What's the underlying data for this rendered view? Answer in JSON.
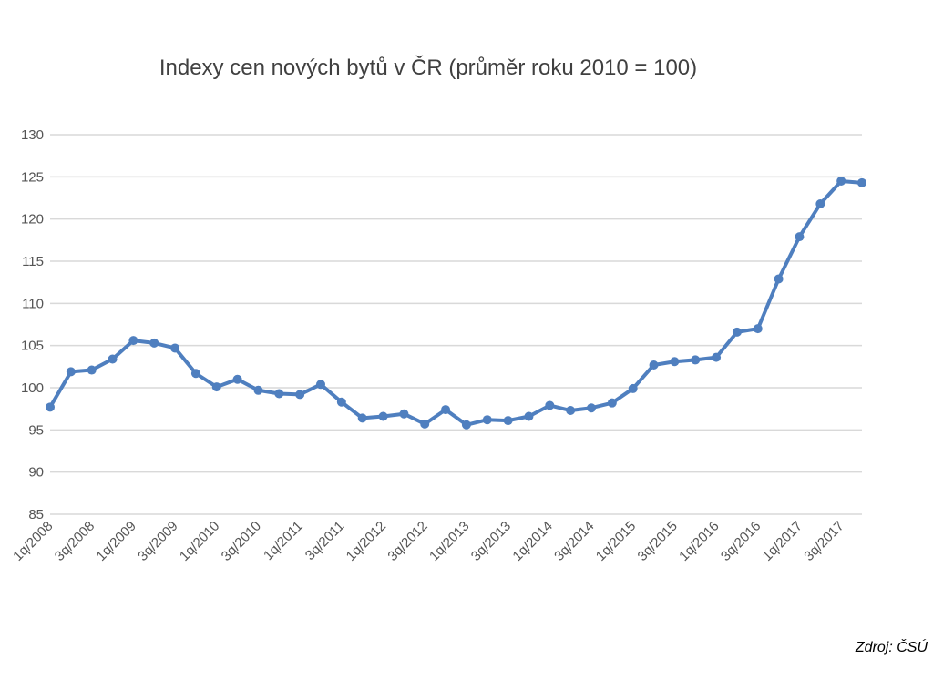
{
  "chart_data": {
    "type": "line",
    "title": "Indexy cen nových bytů v ČR (průměr roku 2010 = 100)",
    "xlabel": "",
    "ylabel": "",
    "ylim": [
      85,
      130
    ],
    "yticks": [
      85,
      90,
      95,
      100,
      105,
      110,
      115,
      120,
      125,
      130
    ],
    "grid": true,
    "legend": "none",
    "colors": {
      "series": "#4F7FBF",
      "grid": "#D9D9D9"
    },
    "categories": [
      "1q/2008",
      "2q/2008",
      "3q/2008",
      "4q/2008",
      "1q/2009",
      "2q/2009",
      "3q/2009",
      "4q/2009",
      "1q/2010",
      "2q/2010",
      "3q/2010",
      "4q/2010",
      "1q/2011",
      "2q/2011",
      "3q/2011",
      "4q/2011",
      "1q/2012",
      "2q/2012",
      "3q/2012",
      "4q/2012",
      "1q/2013",
      "2q/2013",
      "3q/2013",
      "4q/2013",
      "1q/2014",
      "2q/2014",
      "3q/2014",
      "4q/2014",
      "1q/2015",
      "2q/2015",
      "3q/2015",
      "4q/2015",
      "1q/2016",
      "2q/2016",
      "3q/2016",
      "4q/2016",
      "1q/2017",
      "2q/2017",
      "3q/2017",
      "4q/2017"
    ],
    "x_tick_labels": [
      "1q/2008",
      "3q/2008",
      "1q/2009",
      "3q/2009",
      "1q/2010",
      "3q/2010",
      "1q/2011",
      "3q/2011",
      "1q/2012",
      "3q/2012",
      "1q/2013",
      "3q/2013",
      "1q/2014",
      "3q/2014",
      "1q/2015",
      "3q/2015",
      "1q/2016",
      "3q/2016",
      "1q/2017",
      "3q/2017"
    ],
    "series": [
      {
        "values": [
          97.7,
          101.9,
          102.1,
          103.4,
          105.6,
          105.3,
          104.7,
          101.7,
          100.1,
          101.0,
          99.7,
          99.3,
          99.2,
          100.4,
          98.3,
          96.4,
          96.6,
          96.9,
          95.7,
          97.4,
          95.6,
          96.2,
          96.1,
          96.6,
          97.9,
          97.3,
          97.6,
          98.2,
          99.9,
          102.7,
          103.1,
          103.3,
          103.6,
          106.6,
          107.0,
          112.9,
          117.9,
          121.8,
          124.5,
          124.3
        ]
      }
    ]
  },
  "source_note": "Zdroj: ČSÚ"
}
